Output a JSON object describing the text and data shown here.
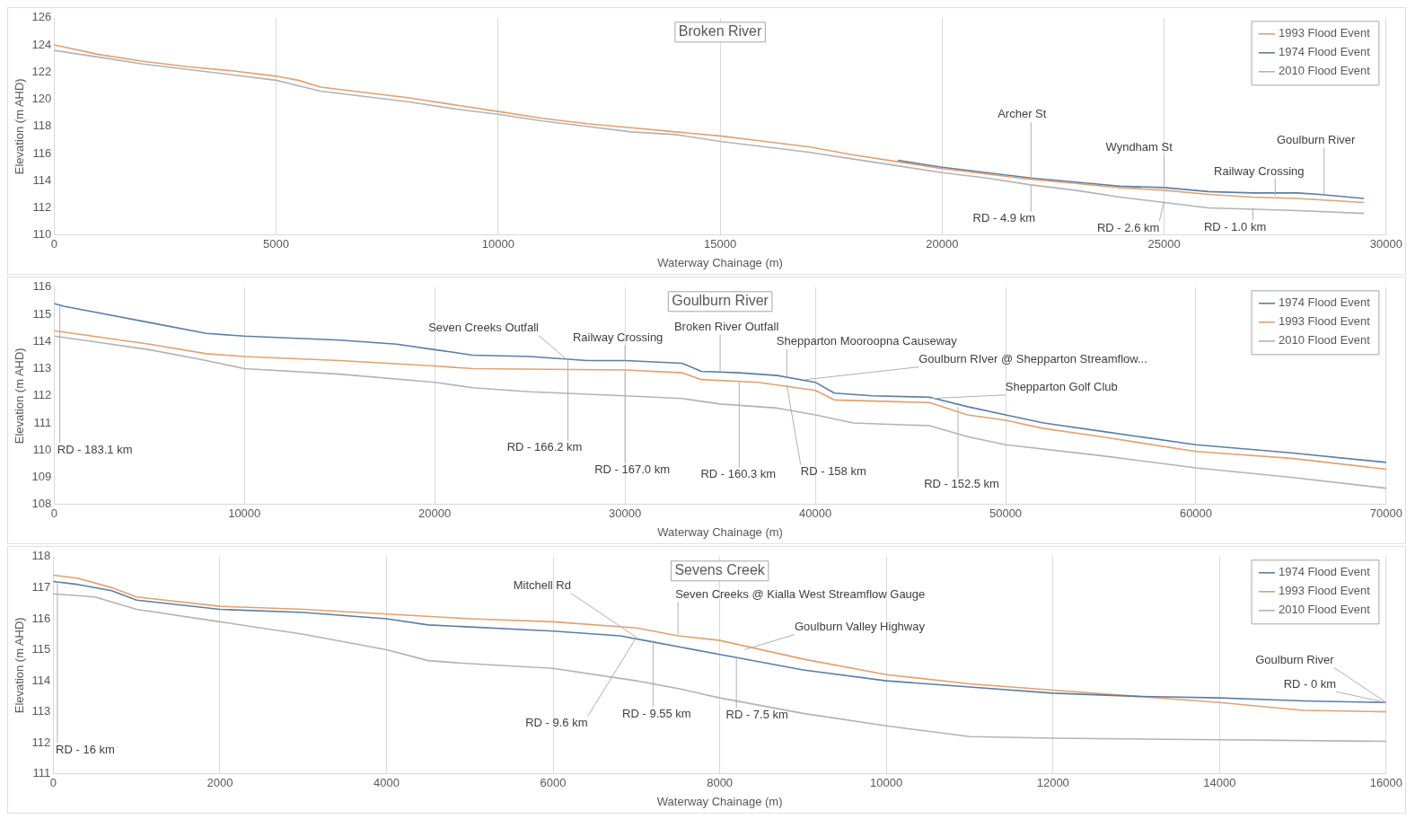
{
  "chart_data": [
    {
      "type": "line",
      "title": "Broken River",
      "xlabel": "Waterway Chainage (m)",
      "ylabel": "Elevation (m AHD)",
      "xlim": [
        0,
        30000
      ],
      "xticks": [
        0,
        5000,
        10000,
        15000,
        20000,
        25000,
        30000
      ],
      "ylim": [
        110,
        126
      ],
      "yticks": [
        110,
        112,
        114,
        116,
        118,
        120,
        122,
        124,
        126
      ],
      "grid": "x",
      "legend": "top right",
      "marker": "none",
      "line_style": "solid",
      "series": [
        {
          "name": "1993 Flood Event",
          "color": "#e0a173",
          "x": [
            0,
            1000,
            2000,
            3000,
            4000,
            5000,
            5500,
            6000,
            7000,
            8000,
            9000,
            10000,
            11000,
            12000,
            13000,
            14000,
            15000,
            16000,
            17000,
            18000,
            19000,
            20000,
            21000,
            22000,
            23000,
            24000,
            25000,
            26000,
            27000,
            28000,
            29000,
            29500
          ],
          "values": [
            124.0,
            123.3,
            122.8,
            122.4,
            122.1,
            121.7,
            121.4,
            120.9,
            120.5,
            120.1,
            119.6,
            119.1,
            118.6,
            118.2,
            117.9,
            117.6,
            117.3,
            116.9,
            116.5,
            115.9,
            115.4,
            114.9,
            114.5,
            114.1,
            113.8,
            113.5,
            113.3,
            113.0,
            112.8,
            112.7,
            112.5,
            112.4
          ]
        },
        {
          "name": "1974 Flood Event",
          "color": "#5b7ea3",
          "x": [
            19000,
            20000,
            21000,
            22000,
            23000,
            24000,
            25000,
            26000,
            27000,
            28000,
            28500,
            29500
          ],
          "values": [
            115.5,
            115.0,
            114.6,
            114.2,
            113.9,
            113.6,
            113.5,
            113.2,
            113.1,
            113.1,
            113.0,
            112.7
          ]
        },
        {
          "name": "2010 Flood Event",
          "color": "#b3b3b3",
          "x": [
            0,
            1000,
            2000,
            3000,
            4000,
            5000,
            5500,
            6000,
            7000,
            8000,
            9000,
            10000,
            11000,
            12000,
            13000,
            14000,
            15000,
            16000,
            17000,
            18000,
            19000,
            20000,
            21000,
            22000,
            23000,
            24000,
            25000,
            26000,
            27000,
            28000,
            29500
          ],
          "values": [
            123.6,
            123.1,
            122.6,
            122.2,
            121.8,
            121.4,
            121.0,
            120.6,
            120.2,
            119.8,
            119.3,
            118.9,
            118.4,
            118.0,
            117.6,
            117.4,
            116.9,
            116.5,
            116.1,
            115.6,
            115.1,
            114.6,
            114.2,
            113.7,
            113.3,
            112.8,
            112.4,
            112.0,
            111.9,
            111.8,
            111.6
          ]
        }
      ],
      "annotations": [
        {
          "text": "Archer St",
          "x": 22000,
          "y": 114.1
        },
        {
          "text": "RD - 4.9 km",
          "x": 22000,
          "y": 113.7
        },
        {
          "text": "Wyndham St",
          "x": 25000,
          "y": 113.4
        },
        {
          "text": "RD - 2.6 km",
          "x": 25000,
          "y": 112.5
        },
        {
          "text": "Railway Crossing",
          "x": 27500,
          "y": 112.9
        },
        {
          "text": "Goulburn River",
          "x": 28600,
          "y": 113.0
        },
        {
          "text": "RD - 1.0 km",
          "x": 27000,
          "y": 112.0
        }
      ]
    },
    {
      "type": "line",
      "title": "Goulburn River",
      "xlabel": "Waterway Chainage (m)",
      "ylabel": "Elevation (m AHD)",
      "xlim": [
        0,
        70000
      ],
      "xticks": [
        0,
        10000,
        20000,
        30000,
        40000,
        50000,
        60000,
        70000
      ],
      "ylim": [
        108,
        116
      ],
      "yticks": [
        108,
        109,
        110,
        111,
        112,
        113,
        114,
        115,
        116
      ],
      "grid": "x",
      "legend": "top right",
      "marker": "none",
      "line_style": "solid",
      "series": [
        {
          "name": "1974 Flood Event",
          "color": "#5b7ea3",
          "x": [
            0,
            500,
            2000,
            5000,
            8000,
            10000,
            15000,
            18000,
            20000,
            22000,
            25000,
            28000,
            30000,
            33000,
            34000,
            36000,
            38000,
            40000,
            41000,
            43000,
            46000,
            48000,
            50000,
            52000,
            55000,
            60000,
            65000,
            70000
          ],
          "values": [
            115.4,
            115.3,
            115.1,
            114.7,
            114.3,
            114.2,
            114.05,
            113.9,
            113.7,
            113.5,
            113.45,
            113.3,
            113.3,
            113.2,
            112.9,
            112.85,
            112.75,
            112.5,
            112.1,
            112.0,
            111.95,
            111.6,
            111.3,
            111.0,
            110.7,
            110.2,
            109.9,
            109.55
          ]
        },
        {
          "name": "1993 Flood Event",
          "color": "#e0a173",
          "x": [
            0,
            2000,
            5000,
            8000,
            10000,
            15000,
            20000,
            22000,
            30000,
            33000,
            34000,
            37000,
            40000,
            41000,
            46000,
            48000,
            50000,
            52000,
            55000,
            60000,
            65000,
            70000
          ],
          "values": [
            114.4,
            114.2,
            113.9,
            113.55,
            113.45,
            113.3,
            113.1,
            113.0,
            112.95,
            112.85,
            112.6,
            112.5,
            112.2,
            111.85,
            111.75,
            111.3,
            111.1,
            110.8,
            110.5,
            109.95,
            109.7,
            109.3
          ]
        },
        {
          "name": "2010 Flood Event",
          "color": "#b3b3b3",
          "x": [
            0,
            2000,
            5000,
            8000,
            10000,
            15000,
            20000,
            22000,
            25000,
            30000,
            33000,
            35000,
            38000,
            40000,
            42000,
            46000,
            48000,
            50000,
            55000,
            60000,
            65000,
            70000
          ],
          "values": [
            114.2,
            114.0,
            113.7,
            113.3,
            113.0,
            112.8,
            112.5,
            112.3,
            112.15,
            112.0,
            111.9,
            111.7,
            111.55,
            111.3,
            111.0,
            110.9,
            110.5,
            110.2,
            109.8,
            109.35,
            109.0,
            108.6
          ]
        }
      ],
      "annotations": [
        {
          "text": "Seven Creeks Outfall",
          "x": 27000,
          "y": 113.3
        },
        {
          "text": "Railway Crossing",
          "x": 30000,
          "y": 113.3
        },
        {
          "text": "Broken River Outfall",
          "x": 35000,
          "y": 112.9
        },
        {
          "text": "Shepparton Mooroopna Causeway",
          "x": 38500,
          "y": 112.7
        },
        {
          "text": "Goulburn RIver @ Shepparton Streamflow...",
          "x": 39500,
          "y": 112.6
        },
        {
          "text": "Shepparton Golf Club",
          "x": 46000,
          "y": 111.9
        },
        {
          "text": "RD - 183.1 km",
          "x": 300,
          "y": 115.3
        },
        {
          "text": "RD - 166.2 km",
          "x": 27000,
          "y": 113.3
        },
        {
          "text": "RD - 167.0 km",
          "x": 30000,
          "y": 112.9
        },
        {
          "text": "RD - 160.3 km",
          "x": 36000,
          "y": 112.5
        },
        {
          "text": "RD - 158 km",
          "x": 38500,
          "y": 112.4
        },
        {
          "text": "RD - 152.5 km",
          "x": 47500,
          "y": 111.6
        }
      ]
    },
    {
      "type": "line",
      "title": "Sevens Creek",
      "xlabel": "Waterway Chainage (m)",
      "ylabel": "Elevation (m AHD)",
      "xlim": [
        0,
        16000
      ],
      "xticks": [
        0,
        2000,
        4000,
        6000,
        8000,
        10000,
        12000,
        14000,
        16000
      ],
      "ylim": [
        111,
        118
      ],
      "yticks": [
        111,
        112,
        113,
        114,
        115,
        116,
        117,
        118
      ],
      "grid": "x",
      "legend": "top right",
      "marker": "none",
      "line_style": "solid",
      "series": [
        {
          "name": "1974 Flood Event",
          "color": "#5b7ea3",
          "x": [
            0,
            300,
            700,
            1000,
            2000,
            3000,
            4000,
            4500,
            6000,
            6800,
            7200,
            8000,
            9000,
            10000,
            11000,
            12000,
            13000,
            14000,
            15000,
            16000
          ],
          "values": [
            117.2,
            117.1,
            116.9,
            116.6,
            116.3,
            116.2,
            116.0,
            115.8,
            115.6,
            115.45,
            115.25,
            114.85,
            114.35,
            114.0,
            113.8,
            113.6,
            113.5,
            113.45,
            113.35,
            113.3
          ]
        },
        {
          "name": "1993 Flood Event",
          "color": "#e0a173",
          "x": [
            0,
            300,
            700,
            1000,
            2000,
            3000,
            4000,
            5000,
            6000,
            7000,
            7500,
            8000,
            9000,
            10000,
            11000,
            12000,
            13000,
            14000,
            15000,
            16000
          ],
          "values": [
            117.4,
            117.3,
            117.0,
            116.7,
            116.4,
            116.3,
            116.15,
            116.0,
            115.9,
            115.7,
            115.45,
            115.3,
            114.7,
            114.2,
            113.9,
            113.7,
            113.5,
            113.3,
            113.05,
            113.0
          ]
        },
        {
          "name": "2010 Flood Event",
          "color": "#b3b3b3",
          "x": [
            0,
            500,
            1000,
            2000,
            3000,
            4000,
            4500,
            5000,
            6000,
            7000,
            7500,
            8000,
            9000,
            10000,
            11000,
            12000,
            14000,
            16000
          ],
          "values": [
            116.8,
            116.7,
            116.3,
            115.9,
            115.5,
            115.0,
            114.65,
            114.55,
            114.4,
            114.0,
            113.75,
            113.45,
            112.95,
            112.55,
            112.2,
            112.15,
            112.1,
            112.05
          ]
        }
      ],
      "annotations": [
        {
          "text": "Mitchell Rd",
          "x": 7000,
          "y": 115.4
        },
        {
          "text": "Seven Creeks @ Kialla West Streamflow Gauge",
          "x": 7500,
          "y": 115.5
        },
        {
          "text": "Goulburn Valley Highway",
          "x": 8300,
          "y": 115.0
        },
        {
          "text": "Goulburn River",
          "x": 16000,
          "y": 113.3
        },
        {
          "text": "RD - 0 km",
          "x": 16000,
          "y": 113.3
        },
        {
          "text": "RD - 16 km",
          "x": 50,
          "y": 117.2
        },
        {
          "text": "RD - 9.6 km",
          "x": 7000,
          "y": 115.4
        },
        {
          "text": "RD - 9.55 km",
          "x": 7200,
          "y": 115.3
        },
        {
          "text": "RD - 7.5 km",
          "x": 8200,
          "y": 114.8
        }
      ]
    }
  ]
}
